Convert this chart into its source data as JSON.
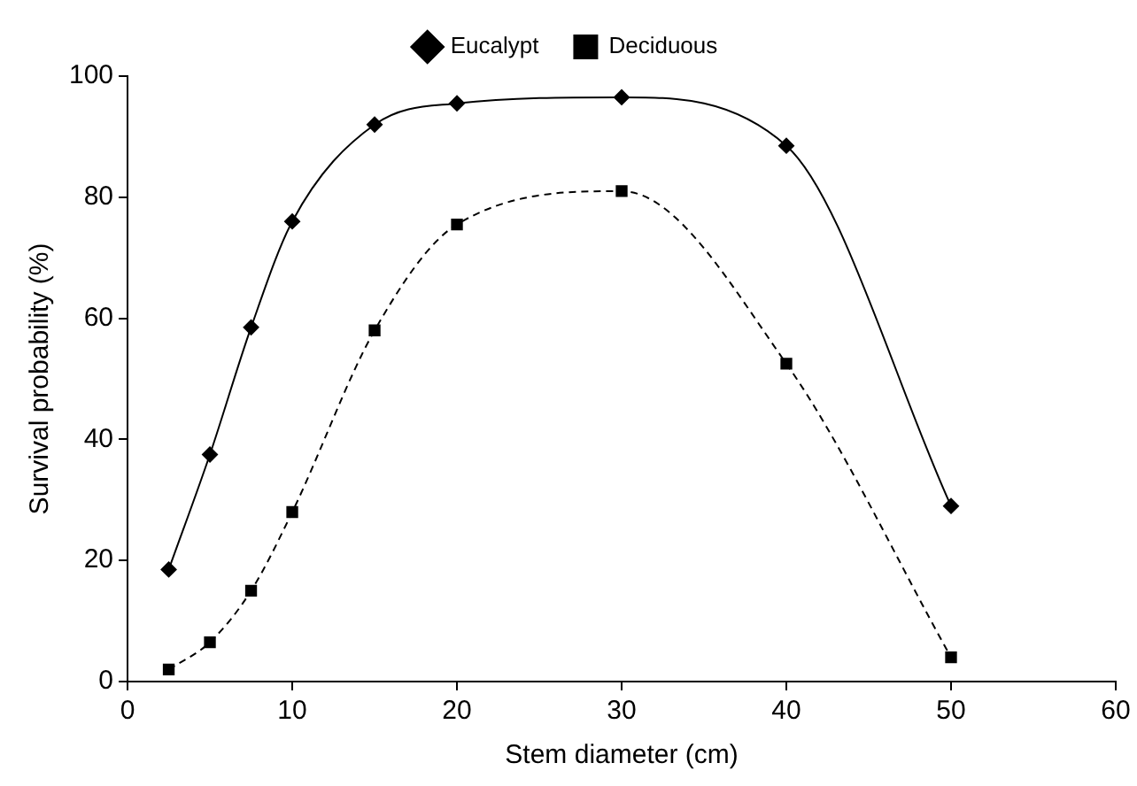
{
  "chart_data": {
    "type": "line",
    "xlabel": "Stem diameter (cm)",
    "ylabel": "Survival probability (%)",
    "x": [
      2.5,
      5,
      7.5,
      10,
      15,
      20,
      30,
      40,
      50
    ],
    "series": [
      {
        "name": "Eucalypt",
        "color": "#000000",
        "marker": "diamond",
        "line_style": "solid",
        "values": [
          18.5,
          37.5,
          58.5,
          76,
          92,
          95.5,
          96.5,
          88.5,
          29
        ]
      },
      {
        "name": "Deciduous",
        "color": "#000000",
        "marker": "square",
        "line_style": "dashed",
        "values": [
          2,
          6.5,
          15,
          28,
          58,
          75.5,
          81,
          52.5,
          4
        ]
      }
    ],
    "xlim": [
      0,
      60
    ],
    "xticks": [
      0,
      10,
      20,
      30,
      40,
      50,
      60
    ],
    "ylim": [
      0,
      100
    ],
    "yticks": [
      0,
      20,
      40,
      60,
      80,
      100
    ],
    "grid": false,
    "legend": "top"
  }
}
